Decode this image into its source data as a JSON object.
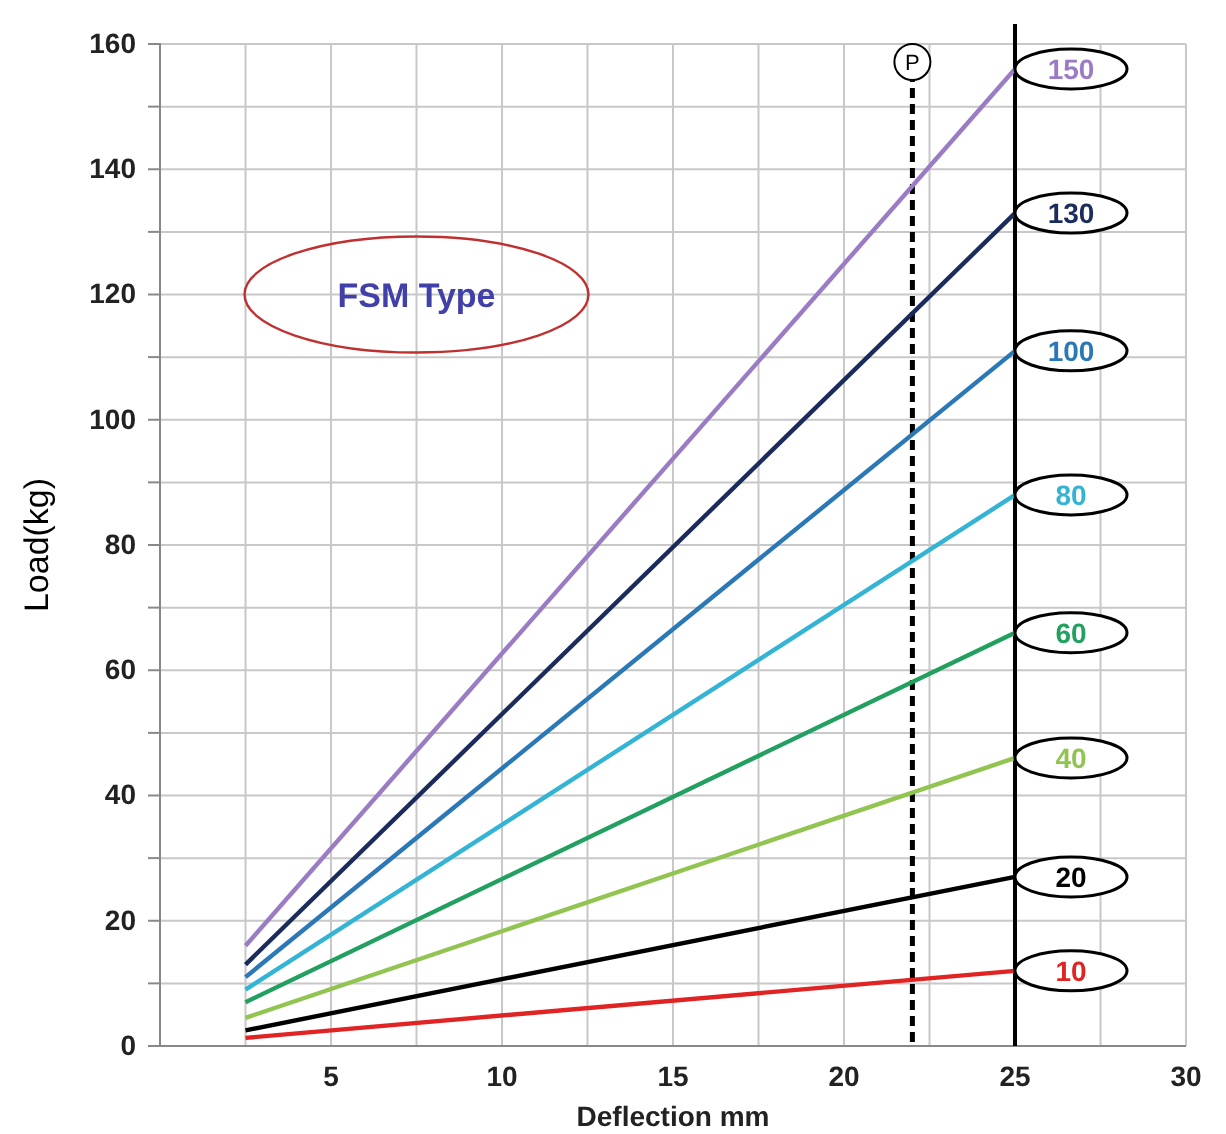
{
  "chart_data": {
    "type": "line",
    "xlabel": "Deflection  mm",
    "ylabel": "Load(kg)",
    "annotations": [
      "FSM Type"
    ],
    "x": [
      2.5,
      25
    ],
    "series": [
      {
        "name": "150",
        "color": "#9a7cc4",
        "values": [
          16,
          156
        ]
      },
      {
        "name": "130",
        "color": "#1b2c5c",
        "values": [
          13,
          133
        ]
      },
      {
        "name": "100",
        "color": "#2b78b6",
        "values": [
          11,
          111
        ]
      },
      {
        "name": "80",
        "color": "#34b4d4",
        "values": [
          9,
          88
        ]
      },
      {
        "name": "60",
        "color": "#22a060",
        "values": [
          7,
          66
        ]
      },
      {
        "name": "40",
        "color": "#92c452",
        "values": [
          4.5,
          46
        ]
      },
      {
        "name": "20",
        "color": "#000000",
        "values": [
          2.5,
          27
        ]
      },
      {
        "name": "10",
        "color": "#e02424",
        "values": [
          1.3,
          12
        ]
      }
    ],
    "xlim": [
      0,
      30
    ],
    "xticks": [
      {
        "value": 2.5,
        "label": null
      },
      5,
      {
        "value": 7.5,
        "label": null
      },
      10,
      {
        "value": 12.5,
        "label": null
      },
      15,
      {
        "value": 17.5,
        "label": null
      },
      20,
      {
        "value": 22.5,
        "label": null
      },
      25,
      {
        "value": 27.5,
        "label": null
      },
      30
    ],
    "ylim": [
      0,
      160
    ],
    "yticks": [
      0,
      {
        "value": 10,
        "label": null
      },
      20,
      {
        "value": 30,
        "label": null
      },
      40,
      {
        "value": 50,
        "label": null
      },
      60,
      {
        "value": 70,
        "label": null
      },
      80,
      {
        "value": 90,
        "label": null
      },
      100,
      {
        "value": 110,
        "label": null
      },
      120,
      {
        "value": 130,
        "label": null
      },
      140,
      {
        "value": 150,
        "label": null
      },
      160
    ],
    "grid": true,
    "marker": "none",
    "line_style": "solid",
    "ref_lines": [
      {
        "axis": "x",
        "value": 22,
        "label": "P",
        "line_style": "dashed",
        "color": "#000000"
      },
      {
        "axis": "x",
        "value": 25,
        "color": "#000000",
        "line_style": "solid"
      }
    ]
  }
}
